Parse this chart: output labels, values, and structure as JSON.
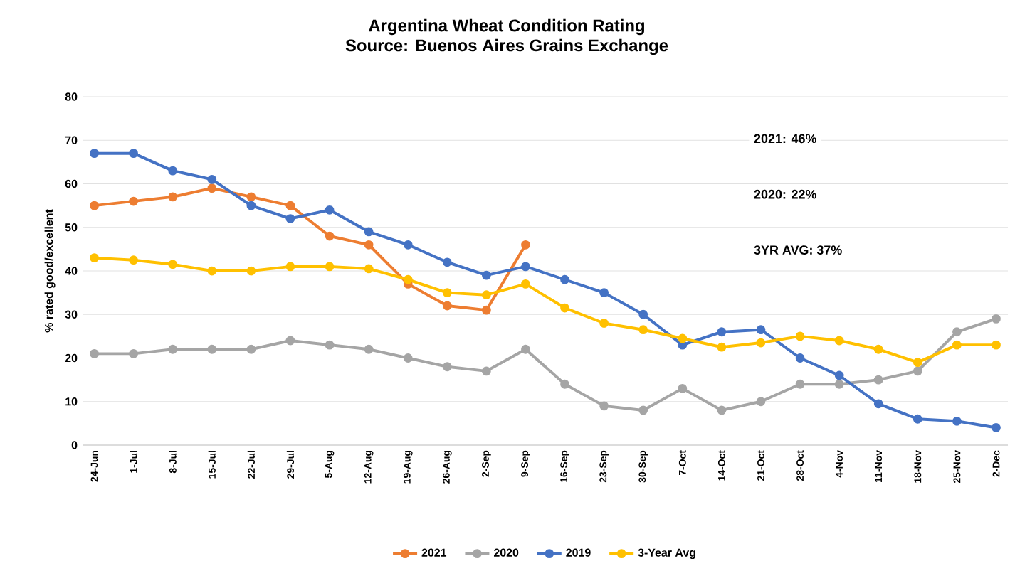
{
  "chart_data": {
    "type": "line",
    "title": "Argentina Wheat Condition Rating",
    "subtitle": "Source: Buenos Aires Grains Exchange",
    "ylabel": "% rated good/excellent",
    "categories": [
      "24-Jun",
      "1-Jul",
      "8-Jul",
      "15-Jul",
      "22-Jul",
      "29-Jul",
      "5-Aug",
      "12-Aug",
      "19-Aug",
      "26-Aug",
      "2-Sep",
      "9-Sep",
      "16-Sep",
      "23-Sep",
      "30-Sep",
      "7-Oct",
      "14-Oct",
      "21-Oct",
      "28-Oct",
      "4-Nov",
      "11-Nov",
      "18-Nov",
      "25-Nov",
      "2-Dec"
    ],
    "series": [
      {
        "name": "2021",
        "color": "#ed7d31",
        "values": [
          55,
          56,
          57,
          59,
          57,
          55,
          48,
          46,
          37,
          32,
          31,
          46,
          null,
          null,
          null,
          null,
          null,
          null,
          null,
          null,
          null,
          null,
          null,
          null
        ]
      },
      {
        "name": "2020",
        "color": "#a5a5a5",
        "values": [
          21,
          21,
          22,
          22,
          22,
          24,
          23,
          22,
          20,
          18,
          17,
          22,
          14,
          9,
          8,
          13,
          8,
          10,
          14,
          14,
          15,
          17,
          26,
          29
        ]
      },
      {
        "name": "2019",
        "color": "#4472c4",
        "values": [
          67,
          67,
          63,
          61,
          55,
          52,
          54,
          49,
          46,
          42,
          39,
          41,
          38,
          35,
          30,
          23,
          26,
          26.5,
          20,
          16,
          9.5,
          6,
          5.5,
          4
        ]
      },
      {
        "name": "3-Year Avg",
        "color": "#ffc000",
        "values": [
          43,
          42.5,
          41.5,
          40,
          40,
          41,
          41,
          40.5,
          38,
          35,
          34.5,
          37,
          31.5,
          28,
          26.5,
          24.5,
          22.5,
          23.5,
          25,
          24,
          22,
          19,
          23,
          23
        ]
      }
    ],
    "ylim": [
      0,
      80
    ],
    "yticks": [
      0,
      10,
      20,
      30,
      40,
      50,
      60,
      70,
      80
    ],
    "grid": "y",
    "legend": "bottom",
    "marker": "circle",
    "line_style": "solid",
    "annotations": [
      "2021:  46%",
      "2020:  22%",
      "3YR AVG: 37%"
    ]
  }
}
